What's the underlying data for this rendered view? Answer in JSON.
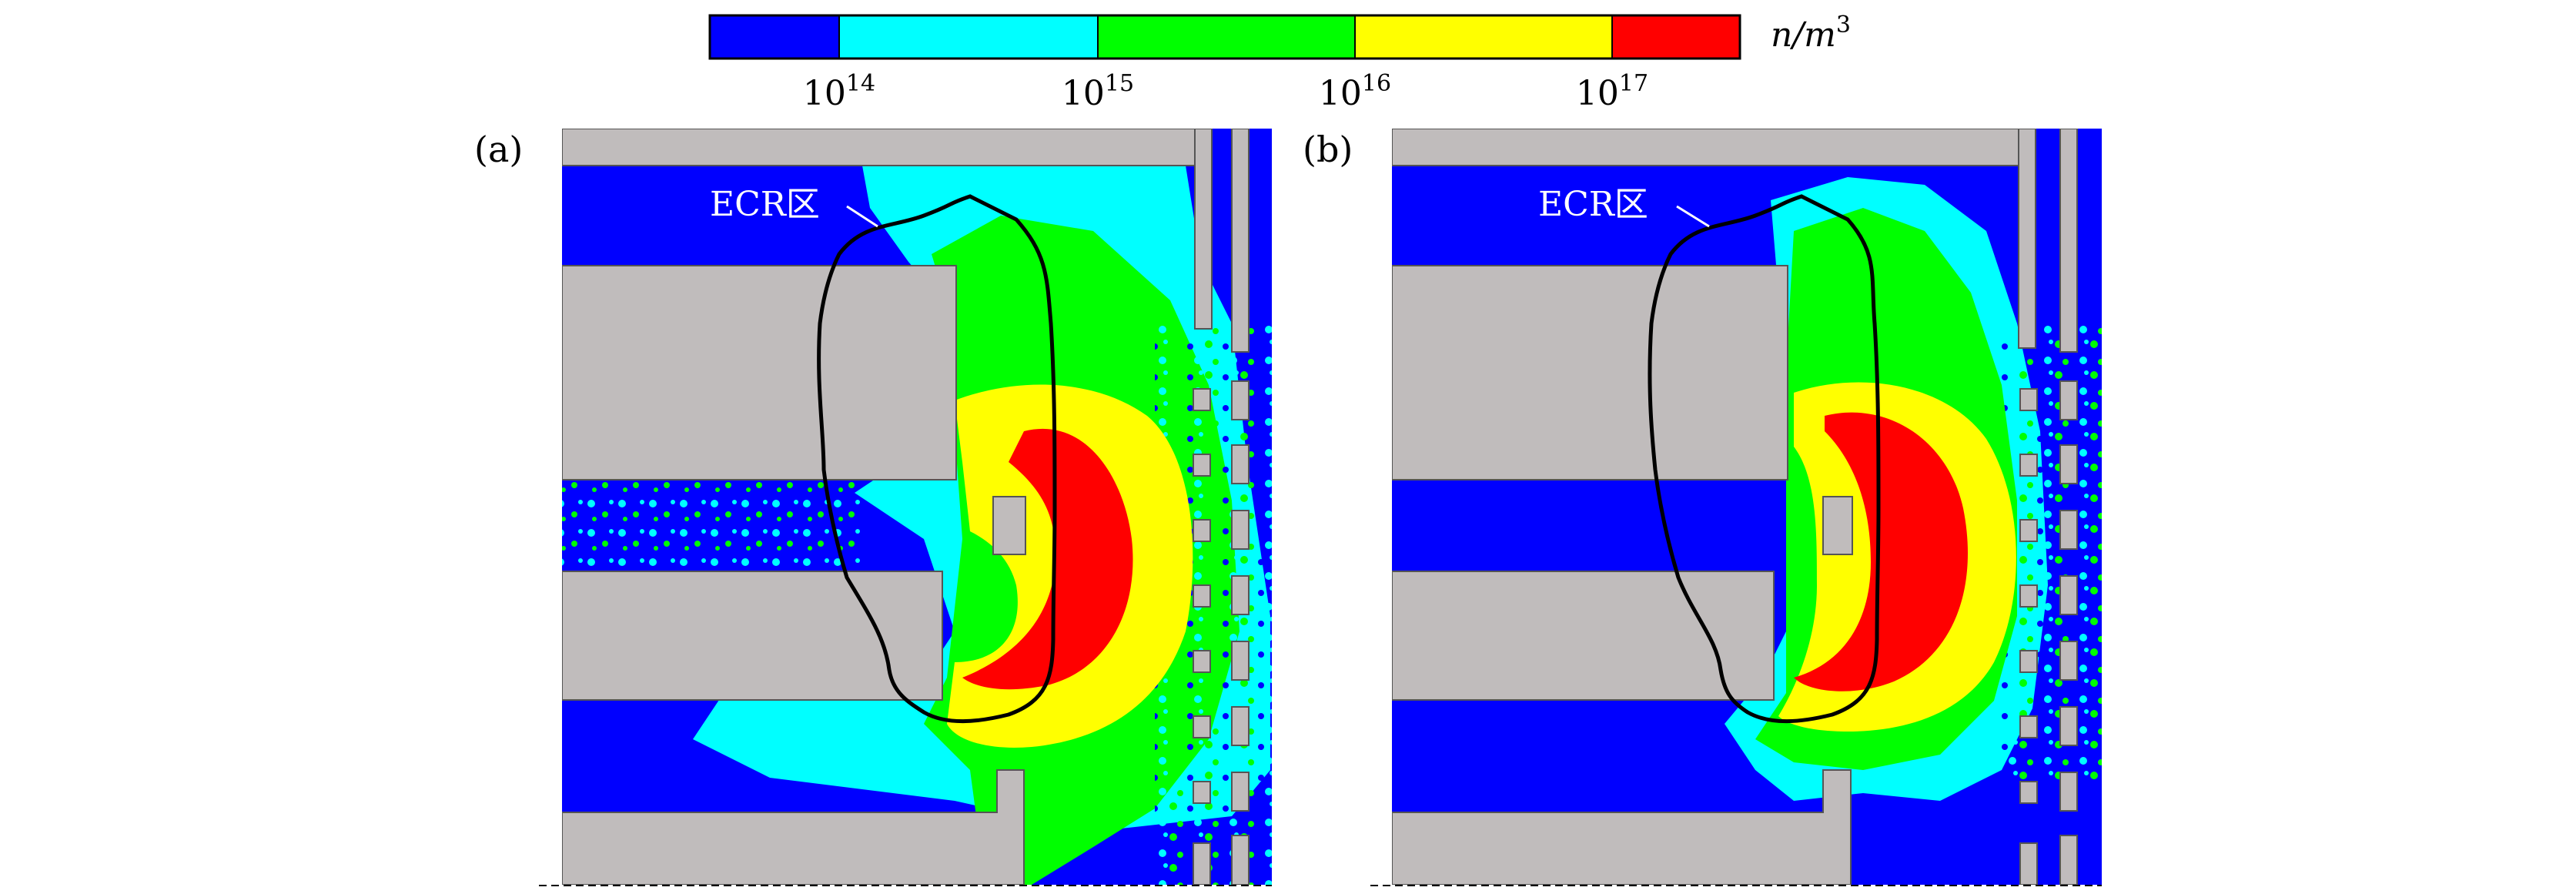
{
  "colors": {
    "blue": "#0000ff",
    "cyan": "#00ffff",
    "green": "#00ff00",
    "yellow": "#ffff00",
    "red": "#ff0000",
    "gray": "#c0bcbc",
    "contour": "#000000"
  },
  "colorbar": {
    "unit": "n/m",
    "unit_exp": "3",
    "ticks": [
      {
        "base": "10",
        "exp": "14"
      },
      {
        "base": "10",
        "exp": "15"
      },
      {
        "base": "10",
        "exp": "16"
      },
      {
        "base": "10",
        "exp": "17"
      }
    ]
  },
  "panels": [
    {
      "label": "(a)",
      "ecr_label": "ECR区"
    },
    {
      "label": "(b)",
      "ecr_label": "ECR区"
    }
  ]
}
